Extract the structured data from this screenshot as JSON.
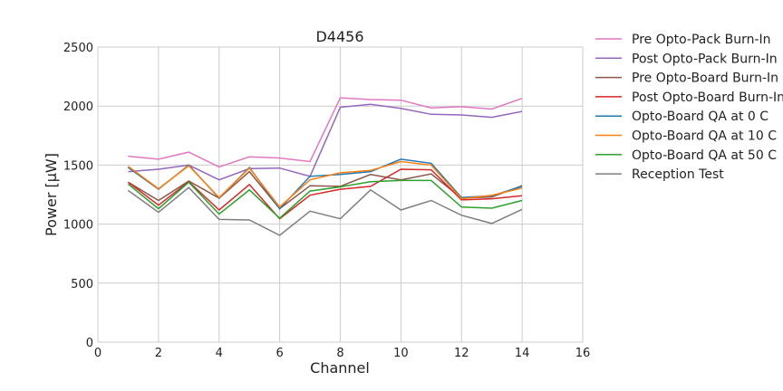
{
  "chart_data": {
    "type": "line",
    "title": "D4456",
    "xlabel": "Channel",
    "ylabel": "Power [μW]",
    "xlim": [
      0,
      16
    ],
    "ylim": [
      0,
      2500
    ],
    "xticks": [
      "0",
      "2",
      "4",
      "6",
      "8",
      "10",
      "12",
      "14",
      "16"
    ],
    "yticks": [
      "0",
      "500",
      "1000",
      "1500",
      "2000",
      "2500"
    ],
    "grid": true,
    "legend_placement": "outside-right",
    "x": [
      1,
      2,
      3,
      4,
      5,
      6,
      7,
      8,
      9,
      10,
      11,
      12,
      13,
      14
    ],
    "series": [
      {
        "name": "Pre Opto-Pack Burn-In",
        "color": "#e377c2",
        "values": [
          1575,
          1550,
          1610,
          1485,
          1570,
          1560,
          1530,
          2070,
          2055,
          2050,
          1985,
          1995,
          1975,
          2065
        ]
      },
      {
        "name": "Post Opto-Pack Burn-In",
        "color": "#9467bd",
        "values": [
          1445,
          1465,
          1500,
          1375,
          1470,
          1475,
          1405,
          1990,
          2015,
          1980,
          1930,
          1925,
          1905,
          1955
        ]
      },
      {
        "name": "Pre Opto-Board Burn-In",
        "color": "#8c564b",
        "values": [
          1355,
          1200,
          1365,
          1220,
          1445,
          1130,
          1325,
          1320,
          1420,
          1375,
          1425,
          1220,
          1230,
          1325
        ]
      },
      {
        "name": "Post Opto-Board Burn-In",
        "color": "#d62728",
        "values": [
          1355,
          1160,
          1360,
          1120,
          1335,
          1045,
          1245,
          1295,
          1320,
          1465,
          1460,
          1205,
          1215,
          1240
        ]
      },
      {
        "name": "Opto-Board QA at 0 C",
        "color": "#1f77b4",
        "values": [
          1480,
          1295,
          1500,
          1220,
          1480,
          1130,
          1405,
          1420,
          1445,
          1550,
          1515,
          1225,
          1240,
          1320
        ]
      },
      {
        "name": "Opto-Board QA at 10 C",
        "color": "#ff7f0e",
        "values": [
          1490,
          1300,
          1495,
          1225,
          1475,
          1145,
          1375,
          1435,
          1455,
          1530,
          1500,
          1215,
          1245,
          1305
        ]
      },
      {
        "name": "Opto-Board QA at 50 C",
        "color": "#2ca02c",
        "values": [
          1340,
          1130,
          1355,
          1085,
          1290,
          1050,
          1280,
          1315,
          1360,
          1370,
          1370,
          1145,
          1135,
          1200
        ]
      },
      {
        "name": "Reception Test",
        "color": "#7f7f7f",
        "values": [
          1285,
          1100,
          1310,
          1040,
          1035,
          905,
          1110,
          1045,
          1290,
          1120,
          1200,
          1075,
          1005,
          1125
        ]
      }
    ]
  }
}
